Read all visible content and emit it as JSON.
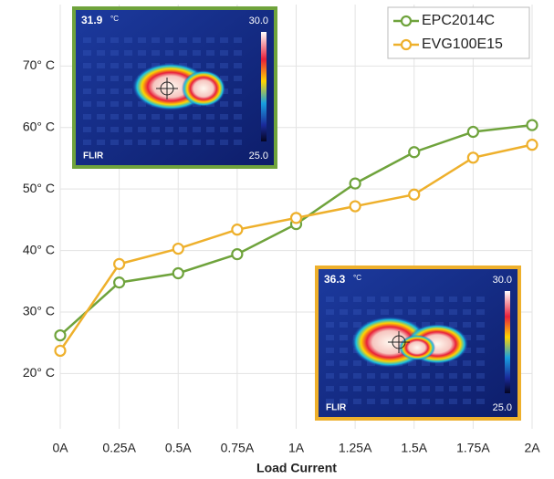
{
  "chart_data": {
    "type": "line",
    "x_label": "Load Current",
    "categories": [
      "0A",
      "0.25A",
      "0.5A",
      "0.75A",
      "1A",
      "1.25A",
      "1.5A",
      "1.75A",
      "2A"
    ],
    "series": [
      {
        "name": "EPC2014C",
        "color": "#6fa33c",
        "values": [
          26.2,
          34.8,
          36.3,
          39.4,
          44.3,
          50.9,
          56.0,
          59.3,
          60.4
        ]
      },
      {
        "name": "EVG100E15",
        "color": "#eeb02c",
        "values": [
          23.7,
          37.8,
          40.3,
          43.4,
          45.3,
          47.2,
          49.1,
          55.1,
          57.2
        ]
      }
    ],
    "ylim": [
      11,
      80
    ],
    "yticks": [
      {
        "value": 20,
        "label": "20° C"
      },
      {
        "value": 30,
        "label": "30° C"
      },
      {
        "value": 40,
        "label": "40° C"
      },
      {
        "value": 50,
        "label": "50° C"
      },
      {
        "value": 60,
        "label": "60° C"
      },
      {
        "value": 70,
        "label": "70° C"
      }
    ],
    "grid": true,
    "legend": "upper right",
    "insets": [
      {
        "color": "#6fa33c",
        "reading": "31.9",
        "unit": "°C",
        "scale_max": "30.0",
        "scale_min": "25.0",
        "brand": "FLIR"
      },
      {
        "color": "#eeb02c",
        "reading": "36.3",
        "unit": "°C",
        "scale_max": "30.0",
        "scale_min": "25.0",
        "brand": "FLIR"
      }
    ]
  }
}
